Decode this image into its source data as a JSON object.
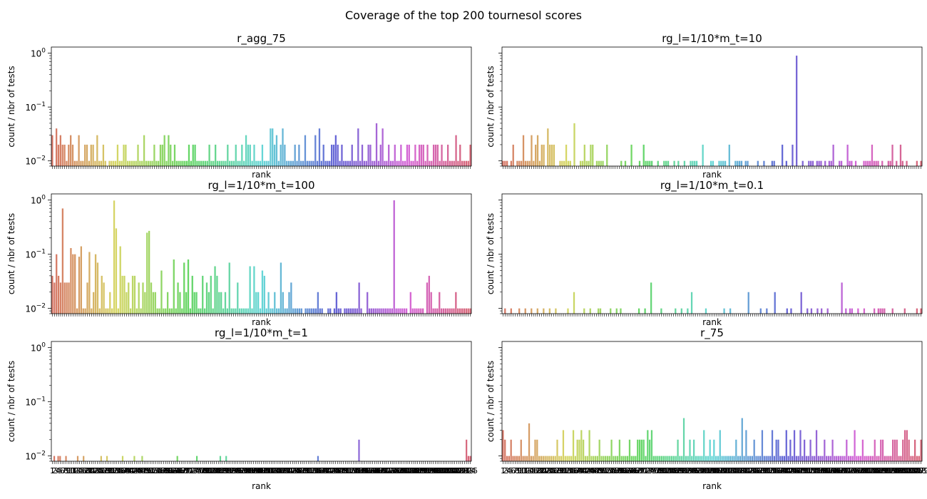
{
  "figure": {
    "suptitle": "Coverage of the top 200 tournesol scores"
  },
  "chart_data": [
    {
      "type": "bar",
      "title": "r_agg_75",
      "xlabel": "rank",
      "ylabel": "count / nbr of tests",
      "yscale": "log",
      "ylim": [
        0.008,
        1.3
      ],
      "n_bars": 200,
      "values": [
        0.03,
        0,
        0.04,
        0.02,
        0.03,
        0.02,
        0.02,
        0.01,
        0.02,
        0.03,
        0.02,
        0.01,
        0.01,
        0.03,
        0.01,
        0.01,
        0.02,
        0.02,
        0.01,
        0.02,
        0.02,
        0.01,
        0.03,
        0.01,
        0.01,
        0.02,
        0.01,
        0,
        0.01,
        0.01,
        0.01,
        0.01,
        0.02,
        0.01,
        0.01,
        0.02,
        0.02,
        0.01,
        0.01,
        0.01,
        0.01,
        0.01,
        0.02,
        0.01,
        0.01,
        0.03,
        0.01,
        0.01,
        0.01,
        0.01,
        0.02,
        0.01,
        0.01,
        0.02,
        0.02,
        0.03,
        0.01,
        0.03,
        0.02,
        0.01,
        0.02,
        0.01,
        0.01,
        0.01,
        0.01,
        0.01,
        0.01,
        0.02,
        0.01,
        0.02,
        0.02,
        0.01,
        0.01,
        0.01,
        0.01,
        0.01,
        0.01,
        0.02,
        0.01,
        0.01,
        0.02,
        0.01,
        0.01,
        0.01,
        0.01,
        0.01,
        0.02,
        0.01,
        0.01,
        0.01,
        0.02,
        0.01,
        0.01,
        0.02,
        0.01,
        0.03,
        0.02,
        0.02,
        0.01,
        0.02,
        0.01,
        0.01,
        0.01,
        0.02,
        0.01,
        0.01,
        0.01,
        0.04,
        0.04,
        0.02,
        0.03,
        0.01,
        0.02,
        0.04,
        0.02,
        0.01,
        0.01,
        0.01,
        0.01,
        0.02,
        0.01,
        0.02,
        0.01,
        0.01,
        0.03,
        0.01,
        0.01,
        0.01,
        0.01,
        0.03,
        0.01,
        0.04,
        0.01,
        0.02,
        0.01,
        0.01,
        0.01,
        0.02,
        0.02,
        0.03,
        0.02,
        0.01,
        0.02,
        0.01,
        0.01,
        0.01,
        0.01,
        0.02,
        0.01,
        0.01,
        0.04,
        0.01,
        0.02,
        0.01,
        0.01,
        0.02,
        0.02,
        0.01,
        0.01,
        0.05,
        0.01,
        0.02,
        0.04,
        0.01,
        0.01,
        0.02,
        0.01,
        0.01,
        0.02,
        0.01,
        0.01,
        0.02,
        0.01,
        0.01,
        0.02,
        0.02,
        0.01,
        0.01,
        0.02,
        0.01,
        0.02,
        0.02,
        0.02,
        0.01,
        0.02,
        0.01,
        0.01,
        0.02,
        0.02,
        0.02,
        0.01,
        0.02,
        0.01,
        0.01,
        0.02,
        0.01,
        0.01,
        0.01,
        0.03,
        0.01,
        0.02,
        0.01,
        0.01,
        0.01,
        0.01,
        0.02
      ]
    },
    {
      "type": "bar",
      "title": "rg_l=1/10*m_t=10",
      "xlabel": "rank",
      "ylabel": "count / nbr of tests",
      "yscale": "log",
      "ylim": [
        0.008,
        1.3
      ],
      "n_bars": 200,
      "values": [
        0.01,
        0.01,
        0.01,
        0,
        0.01,
        0.02,
        0,
        0.01,
        0.01,
        0.01,
        0.03,
        0.01,
        0.01,
        0.01,
        0.03,
        0.01,
        0.02,
        0.03,
        0.01,
        0.02,
        0.02,
        0,
        0.04,
        0.02,
        0.02,
        0.02,
        0,
        0,
        0.01,
        0.01,
        0.01,
        0.02,
        0.01,
        0.01,
        0,
        0.05,
        0,
        0,
        0.01,
        0.01,
        0.02,
        0.01,
        0.01,
        0.02,
        0.02,
        0,
        0.01,
        0.01,
        0.01,
        0.01,
        0,
        0.02,
        0,
        0,
        0,
        0,
        0,
        0,
        0.01,
        0,
        0.01,
        0,
        0,
        0.02,
        0,
        0,
        0,
        0.01,
        0,
        0.02,
        0.01,
        0.01,
        0.01,
        0.01,
        0,
        0,
        0.01,
        0,
        0,
        0.01,
        0.01,
        0.01,
        0,
        0,
        0.01,
        0,
        0.01,
        0,
        0,
        0.01,
        0,
        0,
        0.01,
        0.01,
        0.01,
        0.01,
        0,
        0,
        0.02,
        0,
        0,
        0,
        0.01,
        0.01,
        0,
        0,
        0.01,
        0.01,
        0.01,
        0.01,
        0,
        0.02,
        0,
        0,
        0.01,
        0.01,
        0.01,
        0.01,
        0,
        0.01,
        0.01,
        0,
        0,
        0,
        0,
        0.01,
        0,
        0,
        0.01,
        0,
        0,
        0,
        0.01,
        0.01,
        0,
        0,
        0,
        0.02,
        0,
        0.01,
        0,
        0,
        0.02,
        0,
        0.9,
        0,
        0,
        0.01,
        0,
        0,
        0.01,
        0.01,
        0.01,
        0,
        0.01,
        0.01,
        0.01,
        0,
        0.01,
        0,
        0.01,
        0.01,
        0.02,
        0,
        0,
        0.01,
        0.01,
        0,
        0,
        0.02,
        0.01,
        0.01,
        0,
        0.01,
        0,
        0,
        0,
        0.01,
        0.01,
        0.01,
        0.01,
        0.02,
        0.01,
        0.01,
        0.01,
        0,
        0.01,
        0,
        0,
        0.01,
        0.01,
        0.02,
        0,
        0.01,
        0,
        0.02,
        0.01,
        0,
        0.01,
        0,
        0,
        0,
        0,
        0.01,
        0,
        0.01
      ]
    },
    {
      "type": "bar",
      "title": "rg_l=1/10*m_t=100",
      "xlabel": "rank",
      "ylabel": "count / nbr of tests",
      "yscale": "log",
      "ylim": [
        0.008,
        1.3
      ],
      "n_bars": 200,
      "values": [
        0.04,
        0.03,
        0.1,
        0.04,
        0.03,
        0.7,
        0.03,
        0.03,
        0.03,
        0.13,
        0.1,
        0.1,
        0.01,
        0.09,
        0.14,
        0.01,
        0.01,
        0.03,
        0.11,
        0.01,
        0.02,
        0.1,
        0.07,
        0.01,
        0.04,
        0.03,
        0.01,
        0.01,
        0.02,
        0.01,
        0.98,
        0.3,
        0.01,
        0.14,
        0.04,
        0.04,
        0.02,
        0.03,
        0.01,
        0.04,
        0.04,
        0.01,
        0.03,
        0.01,
        0.03,
        0.02,
        0.25,
        0.27,
        0.03,
        0.02,
        0.02,
        0.01,
        0.01,
        0.05,
        0.01,
        0.01,
        0.02,
        0.01,
        0.01,
        0.08,
        0.01,
        0.03,
        0.02,
        0.01,
        0.07,
        0.02,
        0.08,
        0.01,
        0.04,
        0.02,
        0.02,
        0.01,
        0.01,
        0.04,
        0.01,
        0.03,
        0.02,
        0.04,
        0.01,
        0.06,
        0.04,
        0.02,
        0.02,
        0.01,
        0.02,
        0.01,
        0.07,
        0.01,
        0.01,
        0.01,
        0.03,
        0.01,
        0.01,
        0.01,
        0.01,
        0.01,
        0.06,
        0.01,
        0.06,
        0.02,
        0.02,
        0.01,
        0.05,
        0.04,
        0.01,
        0.02,
        0.01,
        0.01,
        0.02,
        0.01,
        0.01,
        0.07,
        0.02,
        0.01,
        0.01,
        0.02,
        0.03,
        0.01,
        0.01,
        0.01,
        0.01,
        0.01,
        0,
        0.01,
        0.01,
        0.01,
        0.01,
        0.01,
        0.01,
        0.02,
        0.01,
        0.01,
        0,
        0,
        0.01,
        0.01,
        0,
        0.01,
        0.02,
        0.01,
        0.01,
        0,
        0.01,
        0.01,
        0.01,
        0.01,
        0.01,
        0.01,
        0.01,
        0.03,
        0.01,
        0,
        0,
        0.02,
        0.01,
        0.01,
        0.01,
        0.01,
        0.01,
        0.01,
        0.01,
        0.01,
        0.01,
        0.01,
        0.01,
        0.01,
        0.99,
        0.01,
        0.01,
        0.01,
        0.01,
        0.01,
        0.01,
        0,
        0.02,
        0.01,
        0.01,
        0.01,
        0.01,
        0.01,
        0.01,
        0,
        0.03,
        0.04,
        0.02,
        0.01,
        0.01,
        0.01,
        0.02,
        0.01,
        0.01,
        0.01,
        0.01,
        0.01,
        0.01,
        0.01,
        0.02,
        0.01,
        0.01,
        0.01,
        0.01,
        0.01,
        0.01,
        0.01
      ]
    },
    {
      "type": "bar",
      "title": "rg_l=1/10*m_t=0.1",
      "xlabel": "rank",
      "ylabel": "count / nbr of tests",
      "yscale": "log",
      "ylim": [
        0.008,
        1.3
      ],
      "n_bars": 200,
      "values": [
        0,
        0.01,
        0,
        0,
        0.01,
        0,
        0,
        0,
        0.01,
        0,
        0,
        0.01,
        0,
        0,
        0.01,
        0,
        0,
        0.01,
        0,
        0,
        0.01,
        0,
        0,
        0.01,
        0,
        0,
        0.01,
        0,
        0,
        0,
        0,
        0,
        0.01,
        0,
        0,
        0.02,
        0,
        0,
        0,
        0,
        0.01,
        0,
        0,
        0.01,
        0,
        0,
        0,
        0.01,
        0.01,
        0,
        0,
        0,
        0,
        0.01,
        0,
        0,
        0.01,
        0,
        0.01,
        0,
        0,
        0,
        0,
        0,
        0,
        0,
        0,
        0.01,
        0,
        0,
        0.01,
        0,
        0,
        0.03,
        0,
        0,
        0,
        0,
        0.01,
        0,
        0,
        0,
        0,
        0,
        0,
        0.01,
        0,
        0,
        0.01,
        0,
        0,
        0.01,
        0,
        0.02,
        0,
        0,
        0,
        0,
        0,
        0,
        0.01,
        0,
        0,
        0,
        0,
        0,
        0,
        0,
        0,
        0.01,
        0,
        0,
        0.01,
        0,
        0,
        0,
        0,
        0,
        0,
        0,
        0,
        0.02,
        0,
        0,
        0,
        0,
        0,
        0.01,
        0,
        0,
        0.01,
        0,
        0,
        0,
        0.02,
        0,
        0,
        0,
        0,
        0,
        0.01,
        0,
        0.01,
        0,
        0,
        0,
        0,
        0.02,
        0,
        0,
        0.01,
        0,
        0.01,
        0,
        0,
        0.01,
        0,
        0.01,
        0,
        0,
        0.01,
        0,
        0,
        0,
        0,
        0,
        0,
        0.03,
        0,
        0.01,
        0,
        0.01,
        0.01,
        0,
        0,
        0.01,
        0,
        0,
        0.01,
        0,
        0,
        0,
        0,
        0.01,
        0,
        0.01,
        0.01,
        0.01,
        0.01,
        0,
        0,
        0,
        0.01,
        0,
        0,
        0,
        0,
        0,
        0.01,
        0,
        0,
        0,
        0,
        0,
        0.01,
        0,
        0.01
      ]
    },
    {
      "type": "bar",
      "title": "rg_l=1/10*m_t=1",
      "xlabel": "rank",
      "ylabel": "count / nbr of tests",
      "yscale": "log",
      "ylim": [
        0.008,
        1.3
      ],
      "n_bars": 200,
      "values": [
        0,
        0.01,
        0,
        0.01,
        0.01,
        0,
        0,
        0.01,
        0,
        0,
        0,
        0,
        0,
        0.01,
        0,
        0,
        0.01,
        0,
        0,
        0,
        0,
        0,
        0,
        0,
        0,
        0.01,
        0,
        0,
        0.01,
        0,
        0,
        0,
        0,
        0,
        0,
        0,
        0.01,
        0,
        0,
        0,
        0,
        0,
        0.01,
        0,
        0,
        0,
        0.01,
        0,
        0,
        0,
        0,
        0,
        0,
        0,
        0,
        0,
        0,
        0,
        0,
        0,
        0,
        0,
        0,
        0,
        0.01,
        0,
        0,
        0,
        0,
        0,
        0,
        0,
        0,
        0,
        0.01,
        0,
        0,
        0,
        0,
        0,
        0,
        0,
        0,
        0,
        0,
        0,
        0.01,
        0,
        0,
        0.01,
        0,
        0,
        0,
        0,
        0,
        0,
        0,
        0,
        0,
        0,
        0,
        0,
        0,
        0,
        0,
        0,
        0,
        0,
        0,
        0,
        0,
        0,
        0,
        0,
        0,
        0,
        0,
        0,
        0,
        0,
        0,
        0,
        0,
        0,
        0,
        0,
        0,
        0,
        0,
        0,
        0,
        0,
        0,
        0,
        0,
        0,
        0.01,
        0,
        0,
        0,
        0,
        0,
        0,
        0,
        0,
        0,
        0,
        0,
        0,
        0,
        0,
        0,
        0,
        0,
        0,
        0,
        0,
        0.02,
        0,
        0,
        0,
        0,
        0,
        0,
        0,
        0,
        0,
        0,
        0,
        0,
        0,
        0,
        0,
        0,
        0,
        0,
        0,
        0,
        0,
        0,
        0,
        0,
        0,
        0,
        0,
        0,
        0,
        0,
        0,
        0,
        0,
        0,
        0,
        0,
        0,
        0,
        0,
        0,
        0,
        0,
        0,
        0,
        0,
        0,
        0,
        0,
        0,
        0,
        0,
        0,
        0,
        0,
        0.02,
        0.01,
        0.01
      ]
    },
    {
      "type": "bar",
      "title": "r_75",
      "xlabel": "rank",
      "ylabel": "count / nbr of tests",
      "yscale": "log",
      "ylim": [
        0.008,
        1.3
      ],
      "n_bars": 200,
      "values": [
        0.03,
        0.02,
        0.01,
        0.01,
        0.02,
        0.01,
        0.01,
        0.01,
        0.01,
        0.02,
        0.01,
        0.01,
        0.01,
        0.04,
        0.01,
        0.01,
        0.02,
        0.02,
        0.01,
        0.01,
        0.01,
        0.01,
        0.01,
        0.01,
        0.01,
        0.01,
        0.01,
        0.02,
        0.01,
        0.01,
        0.03,
        0.01,
        0.01,
        0.01,
        0.01,
        0.03,
        0.01,
        0.02,
        0.02,
        0.03,
        0.02,
        0.01,
        0.01,
        0.03,
        0.01,
        0.01,
        0.01,
        0.01,
        0.02,
        0.01,
        0.01,
        0.01,
        0.01,
        0.01,
        0.02,
        0.01,
        0.01,
        0.01,
        0.02,
        0.01,
        0.01,
        0.01,
        0.01,
        0.02,
        0.01,
        0.01,
        0.01,
        0.02,
        0.02,
        0.02,
        0.02,
        0.01,
        0.03,
        0.02,
        0.03,
        0.01,
        0.01,
        0.01,
        0.01,
        0.01,
        0.01,
        0.01,
        0.01,
        0.01,
        0.01,
        0.01,
        0.01,
        0.02,
        0.01,
        0.01,
        0.05,
        0.01,
        0.01,
        0.02,
        0.01,
        0.02,
        0.01,
        0.01,
        0.01,
        0.01,
        0.03,
        0.01,
        0.01,
        0.02,
        0.01,
        0.02,
        0.01,
        0.01,
        0.03,
        0.01,
        0.01,
        0.01,
        0.01,
        0.01,
        0.01,
        0.01,
        0.02,
        0.01,
        0.01,
        0.05,
        0.01,
        0.03,
        0.01,
        0.01,
        0.01,
        0.02,
        0.01,
        0.01,
        0.01,
        0.03,
        0.01,
        0.01,
        0.01,
        0.01,
        0.03,
        0.01,
        0.02,
        0.02,
        0.01,
        0.01,
        0.01,
        0.03,
        0.01,
        0.02,
        0.01,
        0.03,
        0.01,
        0.01,
        0.03,
        0.01,
        0.02,
        0.01,
        0.01,
        0.02,
        0.01,
        0.01,
        0.03,
        0.01,
        0.01,
        0.01,
        0.02,
        0.01,
        0.01,
        0.01,
        0.02,
        0.01,
        0.01,
        0.01,
        0.01,
        0.01,
        0.01,
        0.02,
        0.01,
        0.01,
        0.01,
        0.03,
        0.01,
        0.01,
        0.01,
        0.02,
        0.01,
        0.01,
        0.01,
        0.01,
        0.01,
        0.02,
        0.01,
        0.01,
        0.02,
        0.02,
        0.01,
        0.01,
        0.01,
        0.01,
        0.02,
        0.02,
        0.02,
        0.01,
        0.01,
        0.02,
        0.03,
        0.03,
        0.02,
        0.01,
        0.01,
        0.02,
        0.01,
        0.01,
        0.02
      ]
    }
  ]
}
